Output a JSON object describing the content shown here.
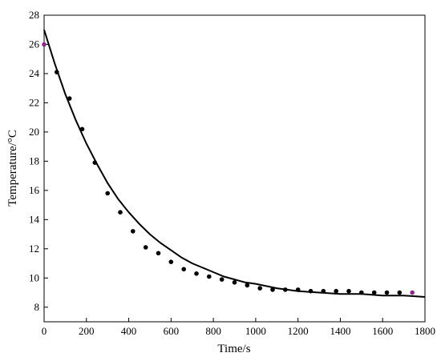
{
  "chart_data": {
    "type": "scatter",
    "xlabel": "Time/s",
    "ylabel": "Temperature/°C",
    "xlim": [
      0,
      1800
    ],
    "ylim": [
      7,
      28
    ],
    "xticks": [
      0,
      200,
      400,
      600,
      800,
      1000,
      1200,
      1400,
      1600,
      1800
    ],
    "yticks": [
      8,
      10,
      12,
      14,
      16,
      18,
      20,
      22,
      24,
      26,
      28
    ],
    "grid": false,
    "legend": "none",
    "colors": {
      "points": "#000000",
      "highlight_points": "#8a2a8a",
      "fit_line": "#000000"
    },
    "series": [
      {
        "kind": "points",
        "x": [
          0,
          60,
          120,
          180,
          240,
          300,
          360,
          420,
          480,
          540,
          600,
          660,
          720,
          780,
          840,
          900,
          960,
          1020,
          1080,
          1140,
          1200,
          1260,
          1320,
          1380,
          1440,
          1500,
          1560,
          1620,
          1680,
          1740
        ],
        "y": [
          26.0,
          24.1,
          22.3,
          20.2,
          17.9,
          15.8,
          14.5,
          13.2,
          12.1,
          11.7,
          11.1,
          10.6,
          10.3,
          10.1,
          9.9,
          9.7,
          9.5,
          9.3,
          9.2,
          9.2,
          9.2,
          9.1,
          9.1,
          9.1,
          9.1,
          9.0,
          9.0,
          9.0,
          9.0,
          9.0
        ],
        "highlight_indices": [
          0,
          29
        ]
      },
      {
        "kind": "fit-line",
        "x": [
          0,
          50,
          100,
          150,
          200,
          250,
          300,
          350,
          400,
          450,
          500,
          550,
          600,
          650,
          700,
          750,
          800,
          850,
          900,
          950,
          1000,
          1100,
          1200,
          1300,
          1400,
          1500,
          1600,
          1700,
          1800
        ],
        "y": [
          27.0,
          24.7,
          22.6,
          20.8,
          19.2,
          17.8,
          16.5,
          15.4,
          14.5,
          13.7,
          13.0,
          12.4,
          11.9,
          11.4,
          11.0,
          10.7,
          10.4,
          10.1,
          9.9,
          9.7,
          9.6,
          9.3,
          9.1,
          9.0,
          8.9,
          8.9,
          8.8,
          8.8,
          8.7
        ]
      }
    ]
  }
}
